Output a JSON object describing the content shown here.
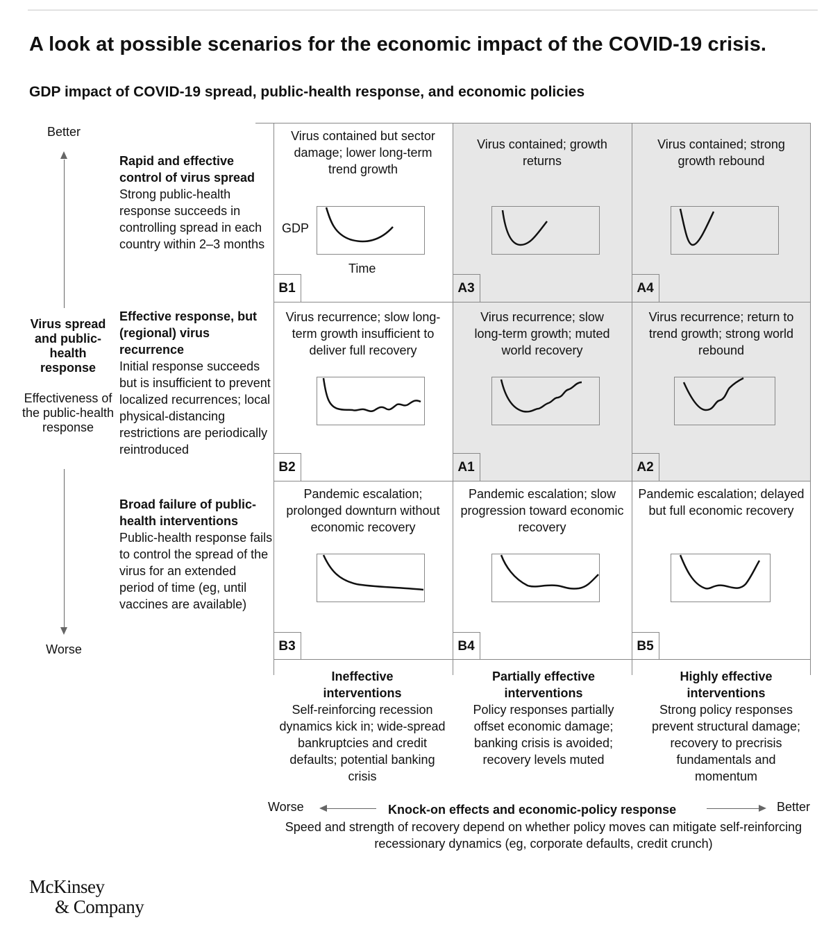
{
  "title": "A look at possible scenarios for the economic impact of the COVID-19 crisis.",
  "subtitle": "GDP impact of COVID-19 spread, public-health response, and economic policies",
  "vertical_axis": {
    "better": "Better",
    "worse": "Worse",
    "title": "Virus spread and public-health response",
    "subtitle": "Effectiveness of the public-health response"
  },
  "rows": [
    {
      "heading": "Rapid and effective control of virus spread",
      "body": "Strong public-health response succeeds in controlling spread in each country within 2–3 months"
    },
    {
      "heading": "Effective response, but (regional) virus recurrence",
      "body": "Initial response succeeds but is insufficient to prevent localized recurrences; local physical-distancing restrictions are periodically reintroduced"
    },
    {
      "heading": "Broad failure of public-health interventions",
      "body": "Public-health response fails to control the spread of the virus for an extended period of time (eg, until vaccines are available)"
    }
  ],
  "cells": [
    {
      "id": "B1",
      "text": "Virus contained but sector damage; lower long-term trend growth",
      "shaded": false
    },
    {
      "id": "A3",
      "text": "Virus contained; growth returns",
      "shaded": true
    },
    {
      "id": "A4",
      "text": "Virus contained; strong growth rebound",
      "shaded": true
    },
    {
      "id": "B2",
      "text": "Virus recurrence; slow long-term growth insufficient to deliver full recovery",
      "shaded": false
    },
    {
      "id": "A1",
      "text": "Virus recurrence; slow long-term growth; muted world recovery",
      "shaded": true
    },
    {
      "id": "A2",
      "text": "Virus recurrence; return to trend growth; strong world rebound",
      "shaded": true
    },
    {
      "id": "B3",
      "text": "Pandemic escalation; prolonged downturn without economic recovery",
      "shaded": false
    },
    {
      "id": "B4",
      "text": "Pandemic escalation; slow progression toward economic recovery",
      "shaded": false
    },
    {
      "id": "B5",
      "text": "Pandemic escalation; delayed but full economic recovery",
      "shaded": false
    }
  ],
  "mini_chart_labels": {
    "y": "GDP",
    "x": "Time"
  },
  "columns": [
    {
      "heading": "Ineffective interventions",
      "body": "Self-reinforcing recession dynamics kick in; wide-spread bankruptcies and credit defaults; potential banking crisis"
    },
    {
      "heading": "Partially effective interventions",
      "body": "Policy responses partially offset economic damage; banking crisis is avoided; recovery levels muted"
    },
    {
      "heading": "Highly effective interventions",
      "body": "Strong policy responses prevent structural damage; recovery to precrisis fundamentals and momentum"
    }
  ],
  "horizontal_axis": {
    "worse": "Worse",
    "better": "Better",
    "title": "Knock-on effects and economic-policy response",
    "subtitle": "Speed and strength of recovery depend on whether policy moves can mitigate self-reinforcing recessionary dynamics (eg, corporate defaults, credit crunch)"
  },
  "logo": {
    "line1": "McKinsey",
    "line2": "& Company"
  },
  "colors": {
    "shaded_cell": "#e7e7e7",
    "grid_line": "#888888",
    "curve": "#111111"
  }
}
